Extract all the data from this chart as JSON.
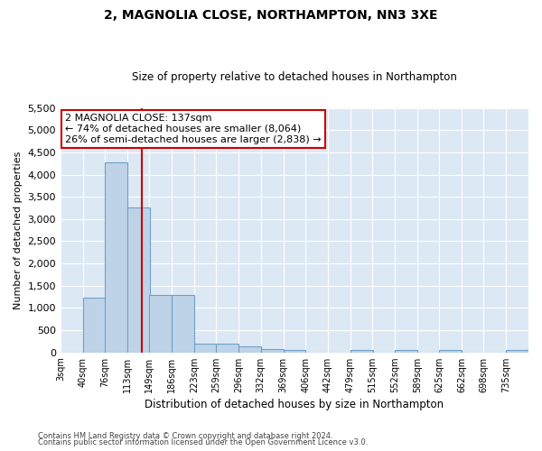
{
  "title1": "2, MAGNOLIA CLOSE, NORTHAMPTON, NN3 3XE",
  "title2": "Size of property relative to detached houses in Northampton",
  "xlabel": "Distribution of detached houses by size in Northampton",
  "ylabel": "Number of detached properties",
  "footer1": "Contains HM Land Registry data © Crown copyright and database right 2024.",
  "footer2": "Contains public sector information licensed under the Open Government Licence v3.0.",
  "annotation_title": "2 MAGNOLIA CLOSE: 137sqm",
  "annotation_line1": "← 74% of detached houses are smaller (8,064)",
  "annotation_line2": "26% of semi-detached houses are larger (2,838) →",
  "property_size": 137,
  "bar_color": "#bed3e8",
  "bar_edge_color": "#6fa0c8",
  "ref_line_color": "#cc0000",
  "annotation_box_color": "#cc0000",
  "background_color": "#dde8f5",
  "categories": [
    "3sqm",
    "40sqm",
    "76sqm",
    "113sqm",
    "149sqm",
    "186sqm",
    "223sqm",
    "259sqm",
    "296sqm",
    "332sqm",
    "369sqm",
    "406sqm",
    "442sqm",
    "479sqm",
    "515sqm",
    "552sqm",
    "589sqm",
    "625sqm",
    "662sqm",
    "698sqm",
    "735sqm"
  ],
  "values": [
    0,
    1230,
    4280,
    3250,
    1290,
    1290,
    200,
    200,
    130,
    70,
    55,
    0,
    0,
    50,
    0,
    50,
    0,
    50,
    0,
    0,
    50
  ],
  "bin_edges": [
    3,
    40,
    76,
    113,
    149,
    186,
    223,
    259,
    296,
    332,
    369,
    406,
    442,
    479,
    515,
    552,
    589,
    625,
    662,
    698,
    735
  ],
  "bin_width": 37,
  "ylim": [
    0,
    5500
  ],
  "yticks": [
    0,
    500,
    1000,
    1500,
    2000,
    2500,
    3000,
    3500,
    4000,
    4500,
    5000,
    5500
  ]
}
